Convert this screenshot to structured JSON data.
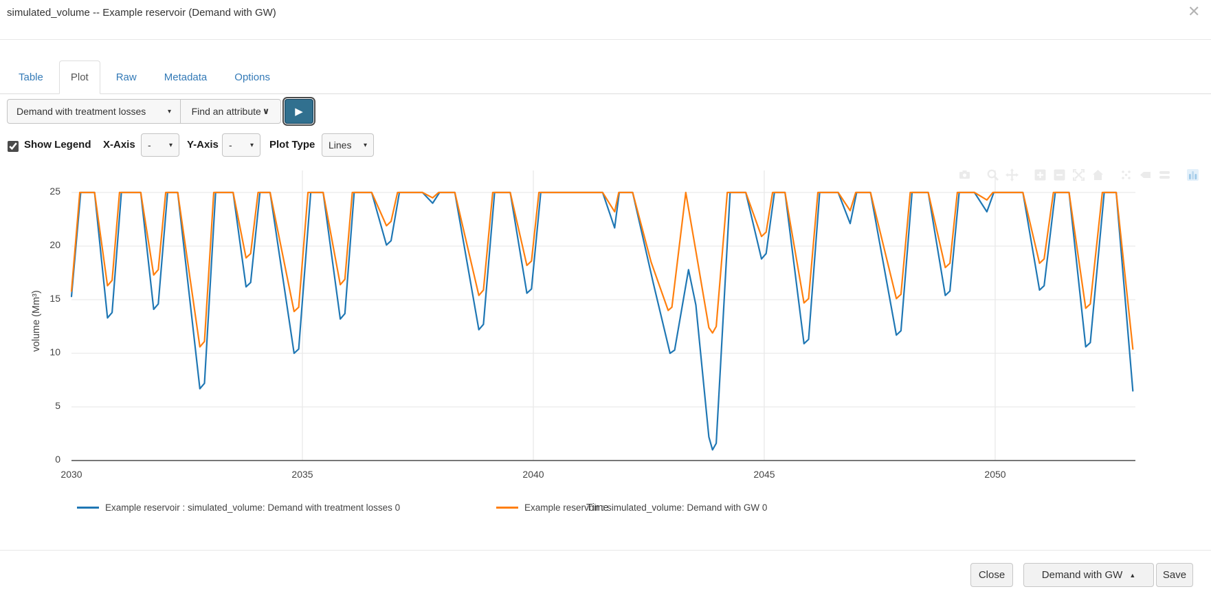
{
  "window": {
    "title": "simulated_volume -- Example reservoir (Demand with GW)",
    "close_icon": "✕"
  },
  "tabs": {
    "items": [
      {
        "label": "Table",
        "active": false
      },
      {
        "label": "Plot",
        "active": true
      },
      {
        "label": "Raw",
        "active": false
      },
      {
        "label": "Metadata",
        "active": false
      },
      {
        "label": "Options",
        "active": false
      }
    ]
  },
  "toolbar": {
    "scenario_dropdown": {
      "value": "Demand with treatment losses",
      "caret": "▾"
    },
    "attribute_dropdown": {
      "value": "Find an attribute",
      "caret": "∨"
    },
    "plot_button": {
      "icon": "▶"
    }
  },
  "plot_controls": {
    "show_legend": {
      "label": "Show Legend",
      "checked": true
    },
    "x_axis": {
      "label": "X-Axis",
      "value": "-",
      "caret": "▾"
    },
    "y_axis": {
      "label": "Y-Axis",
      "value": "-",
      "caret": "▾"
    },
    "plot_type": {
      "label": "Plot Type",
      "value": "Lines",
      "caret": "▾"
    }
  },
  "modebar": {
    "icons": [
      "camera",
      "zoom",
      "pan",
      "zoom-in",
      "zoom-out",
      "autoscale",
      "reset-axes",
      "hover-closest",
      "hover-compare",
      "toggle-spikelines",
      "plotly-logo"
    ]
  },
  "chart_data": {
    "type": "line",
    "title": "",
    "xlabel": "Time",
    "ylabel": "volume (Mm³)",
    "xlim": [
      2030,
      2053
    ],
    "ylim": [
      0,
      25
    ],
    "xticks": [
      "2030",
      "2035",
      "2040",
      "2045",
      "2050"
    ],
    "yticks": [
      "25",
      "20",
      "15",
      "10",
      "5",
      "0"
    ],
    "grid": true,
    "legend_position": "bottom",
    "series": [
      {
        "name": "Example reservoir : simulated_volume: Demand with treatment losses 0",
        "color": "#1f77b4",
        "points": [
          [
            2030.0,
            15.3
          ],
          [
            2030.2,
            25
          ],
          [
            2030.5,
            25
          ],
          [
            2030.78,
            13.3
          ],
          [
            2030.88,
            13.8
          ],
          [
            2031.08,
            25
          ],
          [
            2031.5,
            25
          ],
          [
            2031.78,
            14.1
          ],
          [
            2031.88,
            14.6
          ],
          [
            2032.08,
            25
          ],
          [
            2032.3,
            25
          ],
          [
            2032.78,
            6.7
          ],
          [
            2032.88,
            7.2
          ],
          [
            2033.12,
            25
          ],
          [
            2033.5,
            25
          ],
          [
            2033.78,
            16.2
          ],
          [
            2033.88,
            16.6
          ],
          [
            2034.08,
            25
          ],
          [
            2034.3,
            25
          ],
          [
            2034.82,
            10.0
          ],
          [
            2034.92,
            10.4
          ],
          [
            2035.18,
            25
          ],
          [
            2035.45,
            25
          ],
          [
            2035.82,
            13.2
          ],
          [
            2035.92,
            13.7
          ],
          [
            2036.12,
            25
          ],
          [
            2036.5,
            25
          ],
          [
            2036.82,
            20.1
          ],
          [
            2036.92,
            20.5
          ],
          [
            2037.1,
            25
          ],
          [
            2037.6,
            25
          ],
          [
            2037.82,
            24.0
          ],
          [
            2037.97,
            25
          ],
          [
            2038.3,
            25
          ],
          [
            2038.82,
            12.2
          ],
          [
            2038.92,
            12.7
          ],
          [
            2039.16,
            25
          ],
          [
            2039.5,
            25
          ],
          [
            2039.86,
            15.6
          ],
          [
            2039.96,
            16.0
          ],
          [
            2040.16,
            25
          ],
          [
            2041.5,
            25
          ],
          [
            2041.76,
            21.7
          ],
          [
            2041.86,
            25
          ],
          [
            2042.15,
            25
          ],
          [
            2042.6,
            16.5
          ],
          [
            2042.96,
            10.0
          ],
          [
            2043.06,
            10.3
          ],
          [
            2043.36,
            17.8
          ],
          [
            2043.52,
            14.5
          ],
          [
            2043.8,
            2.2
          ],
          [
            2043.88,
            1.0
          ],
          [
            2043.96,
            1.6
          ],
          [
            2044.26,
            25
          ],
          [
            2044.6,
            25
          ],
          [
            2044.94,
            18.8
          ],
          [
            2045.04,
            19.3
          ],
          [
            2045.22,
            25
          ],
          [
            2045.45,
            25
          ],
          [
            2045.86,
            10.9
          ],
          [
            2045.96,
            11.3
          ],
          [
            2046.2,
            25
          ],
          [
            2046.6,
            25
          ],
          [
            2046.86,
            22.1
          ],
          [
            2047.0,
            25
          ],
          [
            2047.3,
            25
          ],
          [
            2047.86,
            11.7
          ],
          [
            2047.96,
            12.1
          ],
          [
            2048.2,
            25
          ],
          [
            2048.55,
            25
          ],
          [
            2048.92,
            15.4
          ],
          [
            2049.02,
            15.8
          ],
          [
            2049.22,
            25
          ],
          [
            2049.55,
            25
          ],
          [
            2049.82,
            23.2
          ],
          [
            2049.97,
            25
          ],
          [
            2050.6,
            25
          ],
          [
            2050.96,
            15.9
          ],
          [
            2051.06,
            16.3
          ],
          [
            2051.3,
            25
          ],
          [
            2051.6,
            25
          ],
          [
            2051.96,
            10.6
          ],
          [
            2052.06,
            11.0
          ],
          [
            2052.36,
            25
          ],
          [
            2052.62,
            25
          ],
          [
            2052.98,
            6.5
          ]
        ]
      },
      {
        "name": "Example reservoir : simulated_volume: Demand with GW 0",
        "color": "#ff7f0e",
        "points": [
          [
            2030.0,
            15.8
          ],
          [
            2030.18,
            25
          ],
          [
            2030.5,
            25
          ],
          [
            2030.78,
            16.3
          ],
          [
            2030.88,
            16.8
          ],
          [
            2031.04,
            25
          ],
          [
            2031.5,
            25
          ],
          [
            2031.78,
            17.3
          ],
          [
            2031.88,
            17.8
          ],
          [
            2032.04,
            25
          ],
          [
            2032.3,
            25
          ],
          [
            2032.78,
            10.6
          ],
          [
            2032.88,
            11.1
          ],
          [
            2033.08,
            25
          ],
          [
            2033.5,
            25
          ],
          [
            2033.78,
            18.9
          ],
          [
            2033.88,
            19.3
          ],
          [
            2034.04,
            25
          ],
          [
            2034.3,
            25
          ],
          [
            2034.82,
            13.9
          ],
          [
            2034.92,
            14.3
          ],
          [
            2035.12,
            25
          ],
          [
            2035.45,
            25
          ],
          [
            2035.82,
            16.4
          ],
          [
            2035.92,
            16.9
          ],
          [
            2036.08,
            25
          ],
          [
            2036.5,
            25
          ],
          [
            2036.82,
            21.9
          ],
          [
            2036.92,
            22.3
          ],
          [
            2037.06,
            25
          ],
          [
            2037.6,
            25
          ],
          [
            2037.82,
            24.5
          ],
          [
            2037.95,
            25
          ],
          [
            2038.3,
            25
          ],
          [
            2038.82,
            15.4
          ],
          [
            2038.92,
            15.9
          ],
          [
            2039.12,
            25
          ],
          [
            2039.5,
            25
          ],
          [
            2039.86,
            18.2
          ],
          [
            2039.96,
            18.6
          ],
          [
            2040.12,
            25
          ],
          [
            2041.5,
            25
          ],
          [
            2041.76,
            23.2
          ],
          [
            2041.85,
            25
          ],
          [
            2042.15,
            25
          ],
          [
            2042.55,
            18.5
          ],
          [
            2042.92,
            14.0
          ],
          [
            2043.0,
            14.3
          ],
          [
            2043.3,
            25
          ],
          [
            2043.48,
            20.5
          ],
          [
            2043.8,
            12.4
          ],
          [
            2043.88,
            11.9
          ],
          [
            2043.96,
            12.5
          ],
          [
            2044.2,
            25
          ],
          [
            2044.6,
            25
          ],
          [
            2044.94,
            20.9
          ],
          [
            2045.04,
            21.3
          ],
          [
            2045.18,
            25
          ],
          [
            2045.45,
            25
          ],
          [
            2045.86,
            14.7
          ],
          [
            2045.96,
            15.1
          ],
          [
            2046.16,
            25
          ],
          [
            2046.6,
            25
          ],
          [
            2046.86,
            23.3
          ],
          [
            2046.98,
            25
          ],
          [
            2047.3,
            25
          ],
          [
            2047.86,
            15.1
          ],
          [
            2047.96,
            15.5
          ],
          [
            2048.16,
            25
          ],
          [
            2048.55,
            25
          ],
          [
            2048.92,
            18.0
          ],
          [
            2049.02,
            18.4
          ],
          [
            2049.18,
            25
          ],
          [
            2049.55,
            25
          ],
          [
            2049.82,
            24.3
          ],
          [
            2049.95,
            25
          ],
          [
            2050.6,
            25
          ],
          [
            2050.96,
            18.4
          ],
          [
            2051.06,
            18.8
          ],
          [
            2051.26,
            25
          ],
          [
            2051.6,
            25
          ],
          [
            2051.96,
            14.2
          ],
          [
            2052.06,
            14.6
          ],
          [
            2052.32,
            25
          ],
          [
            2052.62,
            25
          ],
          [
            2052.98,
            10.4
          ]
        ]
      }
    ]
  },
  "footer": {
    "close_label": "Close",
    "scenario_button": {
      "label": "Demand with GW",
      "caret": "▲"
    },
    "save_label": "Save"
  }
}
